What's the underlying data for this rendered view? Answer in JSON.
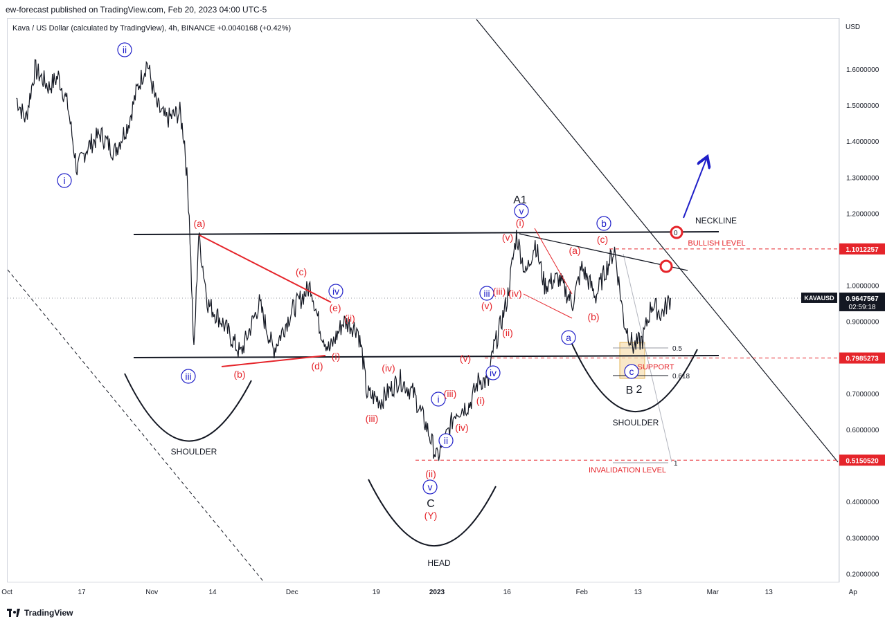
{
  "header": {
    "publisher": "ew-forecast published on TradingView.com, Feb 20, 2023 04:00 UTC-5"
  },
  "legend": {
    "symbol": "Kava / US Dollar (calculated by TradingView), 4h, BINANCE",
    "change": "+0.0040168 (+0.42%)"
  },
  "axis": {
    "currency": "USD"
  },
  "footer": {
    "brand": "TradingView",
    "logo_icon": "tradingview-logo-icon"
  },
  "colors": {
    "red": "#e5242a",
    "blue": "#1e1ec8",
    "black": "#131722",
    "dash_red": "#e5242a"
  },
  "chart_data": {
    "type": "line",
    "symbol": "KAVAUSD",
    "timeframe": "4h",
    "scale": "linear",
    "ylim": [
      0.2,
      1.7
    ],
    "y_ticks": [
      "1.6000000",
      "1.5000000",
      "1.4000000",
      "1.3000000",
      "1.2000000",
      "1.0000000",
      "0.9000000",
      "0.7000000",
      "0.6000000",
      "0.4000000",
      "0.3000000",
      "0.2000000"
    ],
    "x_ticks": [
      "Oct",
      "17",
      "Nov",
      "14",
      "Dec",
      "19",
      "2023",
      "16",
      "Feb",
      "13",
      "Mar",
      "13",
      "Ap"
    ],
    "price_path": [
      {
        "t": "Oct 03",
        "v": 1.52
      },
      {
        "t": "Oct 05",
        "v": 1.46
      },
      {
        "t": "Oct 07",
        "v": 1.6
      },
      {
        "t": "Oct 10",
        "v": 1.55
      },
      {
        "t": "Oct 12",
        "v": 1.58
      },
      {
        "t": "Oct 14",
        "v": 1.5
      },
      {
        "t": "Oct 16",
        "v": 1.32
      },
      {
        "t": "Oct 18",
        "v": 1.38
      },
      {
        "t": "Oct 21",
        "v": 1.42
      },
      {
        "t": "Oct 24",
        "v": 1.37
      },
      {
        "t": "Oct 27",
        "v": 1.45
      },
      {
        "t": "Oct 29",
        "v": 1.55
      },
      {
        "t": "Oct 31",
        "v": 1.62
      },
      {
        "t": "Nov 02",
        "v": 1.5
      },
      {
        "t": "Nov 04",
        "v": 1.46
      },
      {
        "t": "Nov 07",
        "v": 1.48
      },
      {
        "t": "Nov 08",
        "v": 1.4
      },
      {
        "t": "Nov 09",
        "v": 1.2
      },
      {
        "t": "Nov 10",
        "v": 0.81
      },
      {
        "t": "Nov 11",
        "v": 1.14
      },
      {
        "t": "Nov 13",
        "v": 0.95
      },
      {
        "t": "Nov 16",
        "v": 0.9
      },
      {
        "t": "Nov 20",
        "v": 0.81
      },
      {
        "t": "Nov 24",
        "v": 0.95
      },
      {
        "t": "Nov 27",
        "v": 0.82
      },
      {
        "t": "Dec 01",
        "v": 0.93
      },
      {
        "t": "Dec 05",
        "v": 1.0
      },
      {
        "t": "Dec 07",
        "v": 0.88
      },
      {
        "t": "Dec 09",
        "v": 0.82
      },
      {
        "t": "Dec 12",
        "v": 0.9
      },
      {
        "t": "Dec 15",
        "v": 0.88
      },
      {
        "t": "Dec 16",
        "v": 0.81
      },
      {
        "t": "Dec 17",
        "v": 0.7
      },
      {
        "t": "Dec 20",
        "v": 0.68
      },
      {
        "t": "Dec 24",
        "v": 0.74
      },
      {
        "t": "Dec 27",
        "v": 0.7
      },
      {
        "t": "Dec 30",
        "v": 0.6
      },
      {
        "t": "Jan 01",
        "v": 0.52
      },
      {
        "t": "Jan 03",
        "v": 0.58
      },
      {
        "t": "Jan 05",
        "v": 0.65
      },
      {
        "t": "Jan 08",
        "v": 0.67
      },
      {
        "t": "Jan 10",
        "v": 0.74
      },
      {
        "t": "Jan 12",
        "v": 0.73
      },
      {
        "t": "Jan 13",
        "v": 0.82
      },
      {
        "t": "Jan 14",
        "v": 0.86
      },
      {
        "t": "Jan 16",
        "v": 0.96
      },
      {
        "t": "Jan 18",
        "v": 1.14
      },
      {
        "t": "Jan 20",
        "v": 1.03
      },
      {
        "t": "Jan 22",
        "v": 1.12
      },
      {
        "t": "Jan 24",
        "v": 1.0
      },
      {
        "t": "Jan 27",
        "v": 1.02
      },
      {
        "t": "Jan 30",
        "v": 0.95
      },
      {
        "t": "Feb 01",
        "v": 1.05
      },
      {
        "t": "Feb 04",
        "v": 0.97
      },
      {
        "t": "Feb 06",
        "v": 1.04
      },
      {
        "t": "Feb 08",
        "v": 1.1
      },
      {
        "t": "Feb 10",
        "v": 0.9
      },
      {
        "t": "Feb 12",
        "v": 0.83
      },
      {
        "t": "Feb 14",
        "v": 0.85
      },
      {
        "t": "Feb 16",
        "v": 0.95
      },
      {
        "t": "Feb 18",
        "v": 0.92
      },
      {
        "t": "Feb 20",
        "v": 0.965
      }
    ],
    "levels": [
      {
        "label": "NECKLINE",
        "value": 1.15
      },
      {
        "label": "BULLISH LEVEL",
        "value": 1.1012257
      },
      {
        "label": "SUPPORT",
        "value": 0.7985273
      },
      {
        "label": "INVALIDATION LEVEL",
        "value": 0.515052
      }
    ],
    "fib_levels": [
      {
        "label": "0",
        "value": 1.15
      },
      {
        "label": "0.5",
        "value": 0.838
      },
      {
        "label": "0.618",
        "value": 0.765
      },
      {
        "label": "1",
        "value": 0.515
      }
    ],
    "price_tags": [
      {
        "label": "1.1012257",
        "value": 1.1012257
      },
      {
        "label": "0.7985273",
        "value": 0.7985273
      },
      {
        "label": "0.5150520",
        "value": 0.515052
      }
    ],
    "current": {
      "label": "KAVAUSD",
      "price": "0.9647567",
      "countdown": "02:59:18",
      "value": 0.9647567
    },
    "patterns": [
      "SHOULDER",
      "HEAD",
      "SHOULDER"
    ],
    "wave_labels": {
      "blue_circled": [
        "i",
        "ii",
        "iii",
        "iv",
        "v",
        "i",
        "ii",
        "iii",
        "iv",
        "v",
        "a",
        "b",
        "c"
      ],
      "red": [
        "(a)",
        "(b)",
        "(c)",
        "(d)",
        "(e)",
        "(i)",
        "(ii)",
        "(iii)",
        "(iv)",
        "(v)",
        "(i)",
        "(ii)",
        "(iii)",
        "(iv)",
        "(v)",
        "(i)",
        "(ii)",
        "(iii)",
        "(iv)",
        "(v)",
        "(a)",
        "(b)",
        "(c)",
        "(Y)"
      ],
      "black": [
        "A1",
        "C",
        "B",
        "2"
      ]
    }
  }
}
